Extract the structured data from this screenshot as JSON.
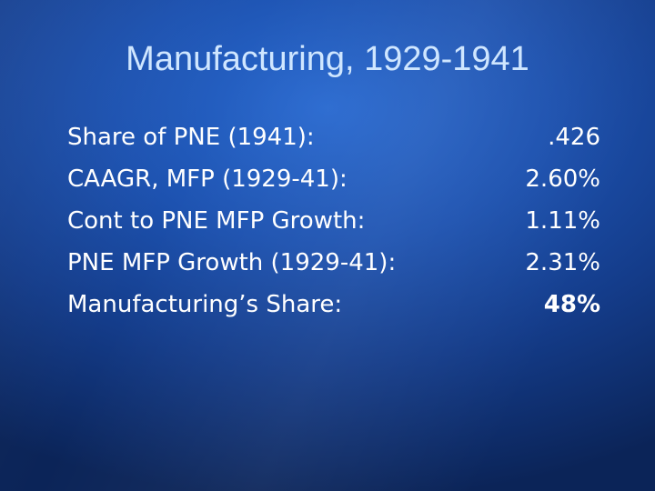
{
  "slide": {
    "title": "Manufacturing, 1929-1941",
    "items": [
      {
        "label": "Share of PNE (1941):",
        "value": ".426"
      },
      {
        "label": "CAAGR, MFP (1929-41):",
        "value": "2.60%"
      },
      {
        "label": "Cont to PNE MFP Growth:",
        "value": "1.11%"
      },
      {
        "label": "PNE MFP Growth (1929-41):",
        "value": "2.31%"
      },
      {
        "label": "Manufacturing’s Share:",
        "value": "48%"
      }
    ]
  }
}
